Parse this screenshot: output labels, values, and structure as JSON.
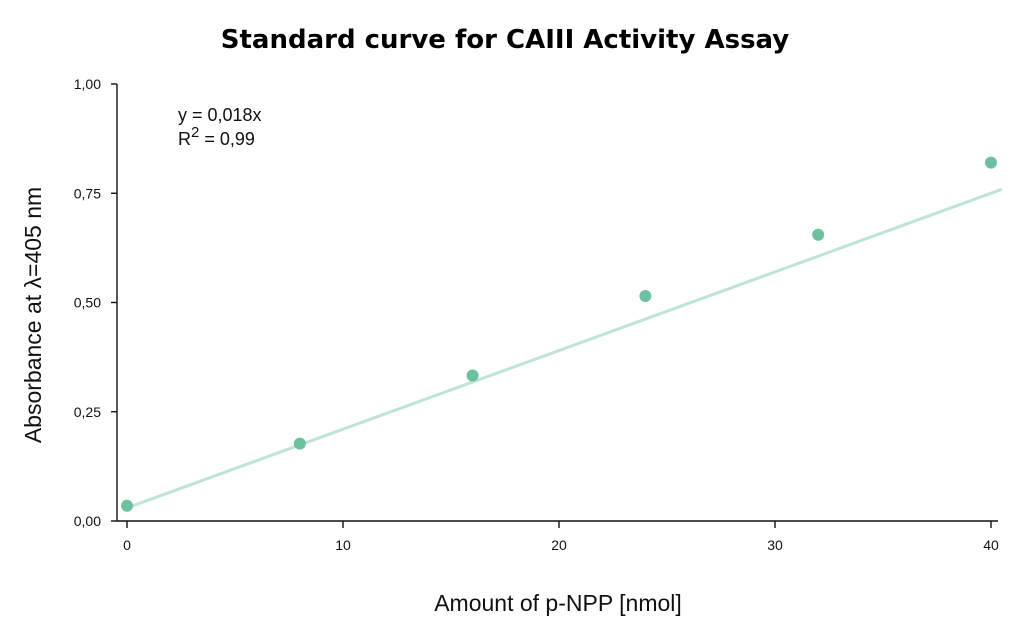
{
  "chart_data": {
    "type": "scatter",
    "title": "Standard curve for CAIII Activity Assay",
    "xlabel": "Amount of p-NPP [nmol]",
    "ylabel": "Absorbance at λ=405 nm",
    "xlim": [
      0,
      40
    ],
    "ylim": [
      0,
      1
    ],
    "x_ticks": [
      "0",
      "10",
      "20",
      "30",
      "40"
    ],
    "y_ticks": [
      "0,00",
      "0,25",
      "0,50",
      "0,75",
      "1,00"
    ],
    "grid": false,
    "series": [
      {
        "x": [
          0,
          8,
          16,
          24,
          32,
          40
        ],
        "y": [
          0.035,
          0.177,
          0.333,
          0.515,
          0.655,
          0.82
        ],
        "color": "#6cc19f"
      }
    ],
    "trendline": {
      "slope": 0.018,
      "intercept": 0.03,
      "color": "#bfe4d6"
    },
    "annotation": {
      "equation": "y = 0,018x",
      "r2_prefix": "R",
      "r2_exponent": "2",
      "r2_value": " = 0,99"
    }
  }
}
